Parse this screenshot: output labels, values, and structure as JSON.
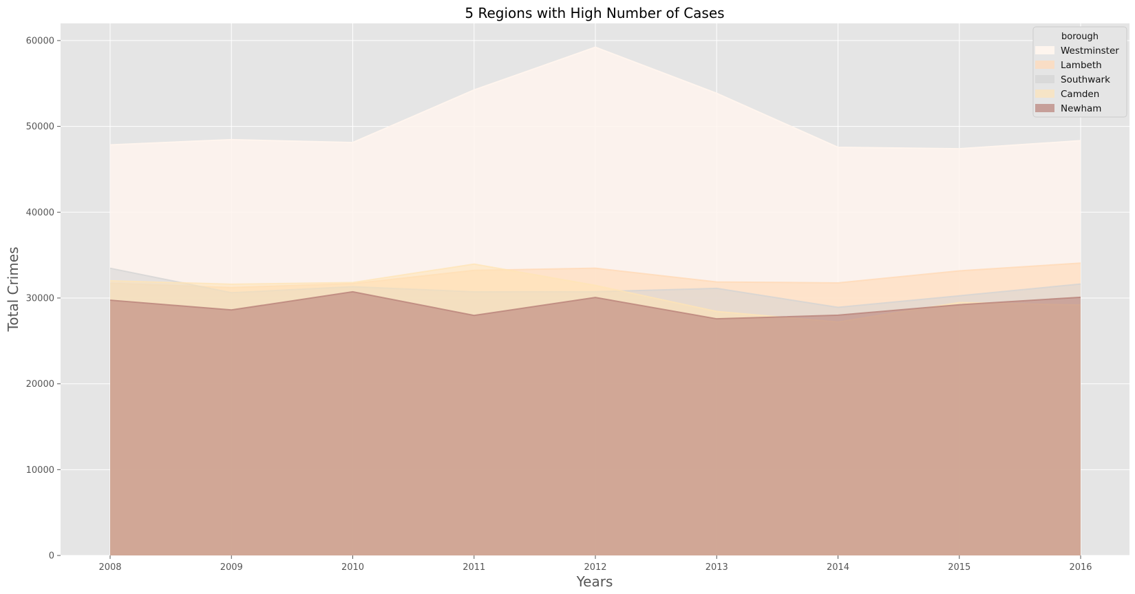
{
  "chart_data": {
    "type": "area",
    "stacked": false,
    "title": "5 Regions with High Number of Cases",
    "xlabel": "Years",
    "ylabel": "Total Crimes",
    "x": [
      2008,
      2009,
      2010,
      2011,
      2012,
      2013,
      2014,
      2015,
      2016
    ],
    "ylim": [
      0,
      62000
    ],
    "yticks": [
      0,
      10000,
      20000,
      30000,
      40000,
      50000,
      60000
    ],
    "grid": true,
    "legend": {
      "title": "borough",
      "placement": "top-right"
    },
    "series": [
      {
        "name": "Westminster",
        "color": "#fff5ee",
        "alpha": 0.85,
        "values": [
          47846,
          48456,
          48116,
          54243,
          59226,
          53852,
          47564,
          47395,
          48330
        ]
      },
      {
        "name": "Lambeth",
        "color": "#ffdab9",
        "alpha": 0.65,
        "values": [
          31717,
          31225,
          31671,
          33224,
          33473,
          31868,
          31765,
          33164,
          34071
        ]
      },
      {
        "name": "Southwark",
        "color": "#d3d3d3",
        "alpha": 0.55,
        "values": [
          33470,
          30623,
          31320,
          30723,
          30737,
          31128,
          28912,
          30260,
          31636
        ]
      },
      {
        "name": "Camden",
        "color": "#ffe4b5",
        "alpha": 0.55,
        "values": [
          32010,
          31612,
          31804,
          33956,
          31472,
          28435,
          27198,
          29477,
          29183
        ]
      },
      {
        "name": "Newham",
        "color": "#b98279",
        "alpha": 0.6,
        "values": [
          29752,
          28610,
          30728,
          27978,
          30067,
          27577,
          28005,
          29217,
          30090
        ]
      }
    ]
  }
}
